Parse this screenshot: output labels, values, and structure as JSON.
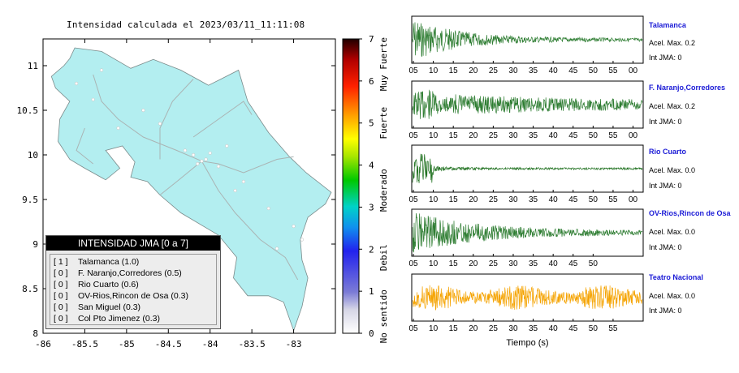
{
  "map": {
    "title": "Intensidad calculada el 2023/03/11_11:11:08",
    "x_ticks": [
      "-86",
      "-85.5",
      "-85",
      "-84.5",
      "-84",
      "-83.5",
      "-83"
    ],
    "y_ticks": [
      "11",
      "10.5",
      "10",
      "9.5",
      "9",
      "8.5",
      "8"
    ],
    "xlim": [
      -86,
      -82.5
    ],
    "ylim": [
      8,
      11.3
    ],
    "land_color": "#b3eef0",
    "legend": {
      "header": "INTENSIDAD JMA [0 a 7]",
      "rows": [
        {
          "count": "[ 1 ]",
          "text": "Talamanca (1.0)"
        },
        {
          "count": "[ 0 ]",
          "text": "F. Naranjo,Corredores (0.5)"
        },
        {
          "count": "[ 0 ]",
          "text": "Rio Cuarto (0.6)"
        },
        {
          "count": "[ 0 ]",
          "text": "OV-Rios,Rincon de Osa (0.3)"
        },
        {
          "count": "[ 0 ]",
          "text": "San Miguel (0.3)"
        },
        {
          "count": "[ 0 ]",
          "text": "Col Pto Jimenez (0.3)"
        }
      ]
    }
  },
  "colorbar": {
    "ticks": [
      "0",
      "1",
      "2",
      "3",
      "4",
      "5",
      "6",
      "7"
    ],
    "range": [
      0,
      7
    ],
    "category_labels": [
      "No sentido",
      "Debil",
      "Moderado",
      "Fuerte",
      "Muy Fuerte"
    ]
  },
  "waveforms": {
    "xlabel": "Tiempo (s)",
    "stations": [
      {
        "name": "Talamanca",
        "acel": "Acel. Max. 0.2",
        "int": "Int JMA: 0",
        "color": "#2e7d32",
        "ticks": [
          "05",
          "10",
          "15",
          "20",
          "25",
          "30",
          "35",
          "40",
          "45",
          "50",
          "55",
          "00"
        ]
      },
      {
        "name": "F. Naranjo,Corredores",
        "acel": "Acel. Max. 0.2",
        "int": "Int JMA: 0",
        "color": "#2e7d32",
        "ticks": [
          "05",
          "10",
          "15",
          "20",
          "25",
          "30",
          "35",
          "40",
          "45",
          "50",
          "55",
          "00"
        ]
      },
      {
        "name": "Rio Cuarto",
        "acel": "Acel. Max. 0.0",
        "int": "Int JMA: 0",
        "color": "#1b6e1b",
        "ticks": [
          "05",
          "10",
          "15",
          "20",
          "25",
          "30",
          "35",
          "40",
          "45",
          "50",
          "55",
          "00"
        ]
      },
      {
        "name": "OV-Rios,Rincon de Osa",
        "acel": "Acel. Max. 0.0",
        "int": "Int JMA: 0",
        "color": "#2e7d32",
        "ticks": [
          "05",
          "10",
          "15",
          "20",
          "25",
          "30",
          "35",
          "40",
          "45",
          "50"
        ]
      },
      {
        "name": "Teatro Nacional",
        "acel": "Acel. Max. 0.0",
        "int": "Int JMA: 0",
        "color": "#f5a300",
        "ticks": [
          "05",
          "10",
          "15",
          "20",
          "25",
          "30",
          "35",
          "40",
          "45",
          "50",
          "55"
        ]
      }
    ]
  },
  "chart_data": [
    {
      "type": "scatter",
      "title": "Intensidad calculada el 2023/03/11_11:11:08",
      "xlabel": "",
      "ylabel": "",
      "xlim": [
        -86,
        -82.5
      ],
      "ylim": [
        8,
        11.3
      ],
      "note_series": "station locations (approximate lon/lat)",
      "x": [
        -84.1,
        -84.05,
        -84.2,
        -83.9,
        -84.0,
        -84.15,
        -83.8,
        -84.3,
        -85.4,
        -85.1,
        -84.6,
        -83.6,
        -83.3,
        -83.0,
        -82.9,
        -83.2,
        -84.8,
        -85.6,
        -85.3,
        -83.7
      ],
      "y": [
        9.93,
        9.95,
        10.0,
        9.87,
        10.02,
        9.9,
        10.1,
        10.05,
        10.62,
        10.3,
        10.35,
        9.7,
        9.4,
        9.2,
        9.05,
        8.95,
        10.5,
        10.8,
        10.95,
        9.6
      ]
    },
    {
      "type": "heatmap",
      "title": "",
      "name": "colorbar",
      "range": [
        0,
        7
      ],
      "ticks": [
        0,
        1,
        2,
        3,
        4,
        5,
        6,
        7
      ]
    },
    {
      "type": "line",
      "xlabel": "Tiempo (s)",
      "series": [
        {
          "name": "Talamanca",
          "peak_acel": 0.2,
          "int_jma": 0,
          "envelope": "decaying from start"
        },
        {
          "name": "F. Naranjo,Corredores",
          "peak_acel": 0.2,
          "int_jma": 0,
          "envelope": "sustained"
        },
        {
          "name": "Rio Cuarto",
          "peak_acel": 0.0,
          "int_jma": 0,
          "envelope": "short burst then quiet"
        },
        {
          "name": "OV-Rios,Rincon de Osa",
          "peak_acel": 0.0,
          "int_jma": 0,
          "envelope": "decaying"
        },
        {
          "name": "Teatro Nacional",
          "peak_acel": 0.0,
          "int_jma": 0,
          "envelope": "noise"
        }
      ]
    }
  ]
}
